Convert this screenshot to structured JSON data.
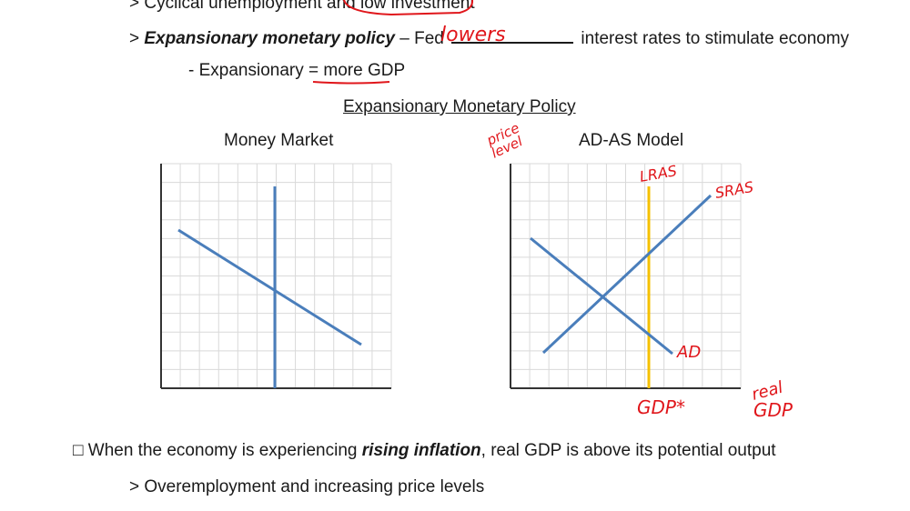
{
  "lines": {
    "cyclical": "> Cyclical unemployment and low investment",
    "expansionary_policy": {
      "prefix": "> ",
      "bold_term": "Expansionary monetary policy",
      "middle": " – Fed ",
      "after_blank": " interest rates to stimulate economy"
    },
    "expansionary_def": {
      "prefix": "- Expansionary = ",
      "emphasis": "more GDP"
    },
    "section_title": "Expansionary Monetary Policy",
    "rising": {
      "box": "□",
      "prefix": " When the economy is experiencing ",
      "emphasis": "rising inflation",
      "suffix": ", real GDP is above its potential output"
    },
    "overemployment": "> Overemployment and increasing price levels"
  },
  "handwriting": {
    "blank_fill": "lowers",
    "price_level_1": "price",
    "price_level_2": "level",
    "lras": "LRAS",
    "sras": "SRAS",
    "ad": "AD",
    "gdp_star": "GDP*",
    "real_gdp_1": "real",
    "real_gdp_2": "GDP"
  },
  "charts": {
    "money_market_title": "Money Market",
    "adas_title": "AD-AS Model"
  },
  "colors": {
    "curve": "#4a7ebb",
    "lras_line": "#f5c000",
    "annotation": "#e0161b",
    "grid": "#d9d9d9"
  }
}
